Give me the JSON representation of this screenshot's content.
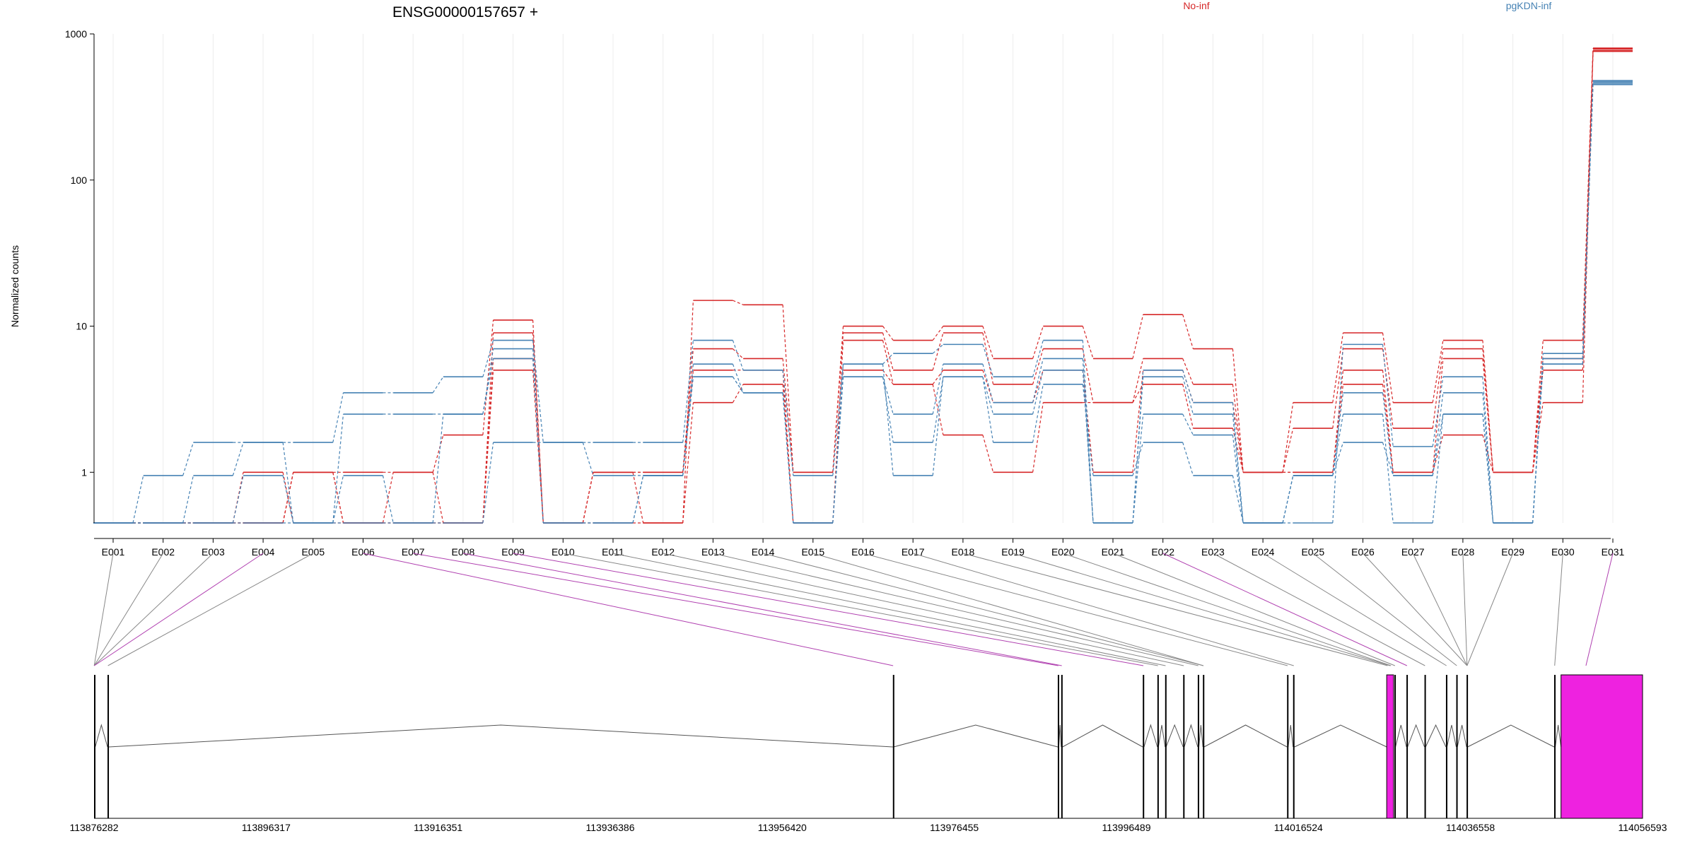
{
  "chart_data": {
    "type": "line",
    "title": "ENSG00000157657 +",
    "ylabel": "Normalized counts",
    "xlabel": "",
    "yscale": "log",
    "ylim": [
      0.45,
      1000
    ],
    "yticks": [
      1,
      10,
      100,
      1000
    ],
    "ytick_labels": [
      "1",
      "10",
      "100",
      "1000"
    ],
    "categories": [
      "E001",
      "E002",
      "E003",
      "E004",
      "E005",
      "E006",
      "E007",
      "E008",
      "E009",
      "E010",
      "E011",
      "E012",
      "E013",
      "E014",
      "E015",
      "E016",
      "E017",
      "E018",
      "E019",
      "E020",
      "E021",
      "E022",
      "E023",
      "E024",
      "E025",
      "E026",
      "E027",
      "E028",
      "E029",
      "E030",
      "E031"
    ],
    "grid": "vertical",
    "legend_placement": "top",
    "groups": [
      {
        "name": "No-inf",
        "color": "#d62728"
      },
      {
        "name": "pgKDN-inf",
        "color": "#4682b4"
      }
    ],
    "series": [
      {
        "group": "No-inf",
        "values": [
          0.45,
          0.45,
          0.45,
          0.45,
          1,
          0.45,
          1,
          1.8,
          11,
          0.45,
          1,
          0.45,
          15,
          14,
          1,
          10,
          8,
          10,
          6,
          10,
          6,
          12,
          7,
          1,
          3,
          9,
          3,
          8,
          1,
          8,
          800
        ]
      },
      {
        "group": "No-inf",
        "values": [
          0.45,
          0.45,
          0.45,
          0.45,
          1,
          1,
          1,
          0.45,
          9,
          0.45,
          1,
          1,
          7,
          6,
          1,
          9,
          5,
          9,
          4,
          7,
          3,
          6,
          4,
          1,
          2,
          7,
          2,
          7,
          1,
          6,
          760
        ]
      },
      {
        "group": "No-inf",
        "values": [
          0.45,
          0.45,
          0.45,
          1,
          0.45,
          0.45,
          0.45,
          0.45,
          6,
          0.45,
          1,
          1,
          5,
          5,
          0.45,
          8,
          4,
          5,
          3,
          5,
          1,
          5,
          3,
          1,
          1,
          5,
          1,
          6,
          1,
          5,
          790
        ]
      },
      {
        "group": "No-inf",
        "values": [
          0.45,
          0.45,
          0.45,
          0.45,
          1,
          0.45,
          0.45,
          0.45,
          5,
          0.45,
          0.45,
          0.45,
          3,
          4,
          0.45,
          5,
          4,
          1.8,
          1,
          3,
          3,
          4,
          2,
          1,
          1,
          4,
          1,
          1.8,
          1,
          3,
          770
        ]
      },
      {
        "group": "pgKDN-inf",
        "values": [
          0.45,
          0.95,
          1.6,
          1.6,
          1.6,
          3.5,
          3.5,
          4.5,
          8,
          1.6,
          1.6,
          1.6,
          8,
          5,
          0.95,
          5.5,
          6.5,
          7.5,
          4.5,
          8,
          0.45,
          5,
          3,
          0.45,
          0.45,
          7.5,
          1.5,
          4.5,
          0.45,
          6.5,
          470
        ]
      },
      {
        "group": "pgKDN-inf",
        "values": [
          0.45,
          0.45,
          0.95,
          1.6,
          0.45,
          2.5,
          2.5,
          2.5,
          7,
          0.45,
          0.45,
          0.95,
          5.5,
          3.5,
          0.45,
          4.5,
          2.5,
          5.5,
          3,
          6,
          0.45,
          4.5,
          2.5,
          0.45,
          0.95,
          3.5,
          0.95,
          3.5,
          0.45,
          5.5,
          450
        ]
      },
      {
        "group": "pgKDN-inf",
        "values": [
          0.45,
          0.45,
          0.45,
          0.95,
          0.45,
          0.95,
          0.45,
          2.5,
          6,
          0.45,
          0.45,
          0.95,
          4.5,
          3.5,
          0.45,
          4.5,
          1.6,
          4.5,
          2.5,
          5,
          0.45,
          2.5,
          1.8,
          0.45,
          0.95,
          2.5,
          0.45,
          2.5,
          0.45,
          5.5,
          460
        ]
      },
      {
        "group": "pgKDN-inf",
        "values": [
          0.45,
          0.45,
          0.45,
          0.45,
          0.45,
          0.45,
          0.45,
          0.45,
          1.6,
          1.6,
          0.95,
          0.95,
          4.5,
          3.5,
          0.45,
          5.5,
          0.95,
          4.5,
          1.6,
          4,
          0.95,
          1.6,
          0.95,
          0.45,
          0.95,
          1.6,
          0.95,
          2.5,
          0.45,
          6,
          480
        ]
      }
    ],
    "exon_types": [
      "normal",
      "normal",
      "normal",
      "highlight",
      "normal",
      "highlight",
      "highlight",
      "highlight",
      "highlight",
      "normal",
      "normal",
      "normal",
      "normal",
      "normal",
      "normal",
      "normal",
      "normal",
      "normal",
      "normal",
      "normal",
      "normal",
      "highlight",
      "normal",
      "normal",
      "normal",
      "normal",
      "normal",
      "normal",
      "normal",
      "normal",
      "highlight"
    ],
    "gene_model": {
      "genomic_start": 113876282,
      "genomic_end": 114056593,
      "axis_ticks": [
        113876282,
        113896317,
        113916351,
        113936386,
        113956420,
        113976455,
        113996489,
        114016524,
        114036558,
        114056593
      ],
      "exons": [
        {
          "start": 113876282,
          "end": 113876420,
          "type": "normal"
        },
        {
          "start": 113877850,
          "end": 113877990,
          "type": "normal"
        },
        {
          "start": 113969300,
          "end": 113969380,
          "type": "normal"
        },
        {
          "start": 113988500,
          "end": 113988620,
          "type": "normal"
        },
        {
          "start": 113988900,
          "end": 113989050,
          "type": "normal"
        },
        {
          "start": 113998400,
          "end": 113998540,
          "type": "normal"
        },
        {
          "start": 114000100,
          "end": 114000220,
          "type": "normal"
        },
        {
          "start": 114001000,
          "end": 114001110,
          "type": "normal"
        },
        {
          "start": 114003100,
          "end": 114003230,
          "type": "normal"
        },
        {
          "start": 114004800,
          "end": 114004930,
          "type": "normal"
        },
        {
          "start": 114005400,
          "end": 114005530,
          "type": "normal"
        },
        {
          "start": 114015200,
          "end": 114015330,
          "type": "normal"
        },
        {
          "start": 114015900,
          "end": 114016060,
          "type": "normal"
        },
        {
          "start": 114026800,
          "end": 114027600,
          "type": "highlight"
        },
        {
          "start": 114027700,
          "end": 114027820,
          "type": "normal"
        },
        {
          "start": 114029100,
          "end": 114029230,
          "type": "normal"
        },
        {
          "start": 114031200,
          "end": 114031330,
          "type": "normal"
        },
        {
          "start": 114033700,
          "end": 114033820,
          "type": "normal"
        },
        {
          "start": 114034900,
          "end": 114035030,
          "type": "normal"
        },
        {
          "start": 114036100,
          "end": 114036220,
          "type": "normal"
        },
        {
          "start": 114046300,
          "end": 114046430,
          "type": "normal"
        },
        {
          "start": 114047100,
          "end": 114056593,
          "type": "highlight"
        }
      ],
      "connector_anchors": [
        113876300,
        113876300,
        113876300,
        113876300,
        113877900,
        113969330,
        113988560,
        113988970,
        113998470,
        114000160,
        114001050,
        114003160,
        114004860,
        114005460,
        114005460,
        114015260,
        114015980,
        114026900,
        114027200,
        114027300,
        114027760,
        114029160,
        114031260,
        114033760,
        114034960,
        114036160,
        114036160,
        114036160,
        114036160,
        114046360,
        114050000
      ]
    }
  }
}
